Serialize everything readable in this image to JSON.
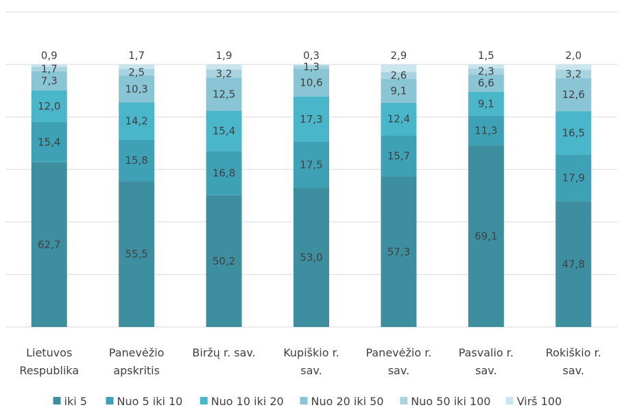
{
  "chart_data": {
    "type": "bar",
    "stacked": true,
    "normalized_percent": true,
    "categories": [
      [
        "Lietuvos",
        "Respublika"
      ],
      [
        "Panevėžio",
        "apskritis"
      ],
      [
        "Biržų r. sav."
      ],
      [
        "Kupiškio r.",
        "sav."
      ],
      [
        "Panevėžio r.",
        "sav."
      ],
      [
        "Pasvalio r.",
        "sav."
      ],
      [
        "Rokiškio r.",
        "sav."
      ]
    ],
    "series": [
      {
        "name": "iki 5",
        "color": "#3d8f9f",
        "values": [
          62.7,
          55.5,
          50.2,
          53.0,
          57.3,
          69.1,
          47.8
        ],
        "labels": [
          "62,7",
          "55,5",
          "50,2",
          "53,0",
          "57,3",
          "69,1",
          "47,8"
        ]
      },
      {
        "name": "Nuo 5 iki 10",
        "color": "#3fa1b5",
        "values": [
          15.4,
          15.8,
          16.8,
          17.5,
          15.7,
          11.3,
          17.9
        ],
        "labels": [
          "15,4",
          "15,8",
          "16,8",
          "17,5",
          "15,7",
          "11,3",
          "17,9"
        ]
      },
      {
        "name": "Nuo 10 iki 20",
        "color": "#49b6ca",
        "values": [
          12.0,
          14.2,
          15.4,
          17.3,
          12.4,
          9.1,
          16.5
        ],
        "labels": [
          "12,0",
          "14,2",
          "15,4",
          "17,3",
          "12,4",
          "9,1",
          "16,5"
        ]
      },
      {
        "name": "Nuo 20 iki 50",
        "color": "#8ac5d5",
        "values": [
          7.3,
          10.3,
          12.5,
          10.6,
          9.1,
          6.6,
          12.6
        ],
        "labels": [
          "7,3",
          "10,3",
          "12,5",
          "10,6",
          "9,1",
          "6,6",
          "12,6"
        ]
      },
      {
        "name": "Nuo 50 iki 100",
        "color": "#a8d4e1",
        "values": [
          1.7,
          2.5,
          3.2,
          1.3,
          2.6,
          2.3,
          3.2
        ],
        "labels": [
          "1,7",
          "2,5",
          "3,2",
          "1,3",
          "2,6",
          "2,3",
          "3,2"
        ]
      },
      {
        "name": "Virš 100",
        "color": "#c9e5ee",
        "values": [
          0.9,
          1.7,
          1.9,
          0.3,
          2.9,
          1.5,
          2.0
        ],
        "labels": [
          "0,9",
          "1,7",
          "1,9",
          "0,3",
          "2,9",
          "1,5",
          "2,0"
        ]
      }
    ],
    "ylim": [
      0,
      100
    ],
    "grid": true,
    "legend": "bottom"
  }
}
